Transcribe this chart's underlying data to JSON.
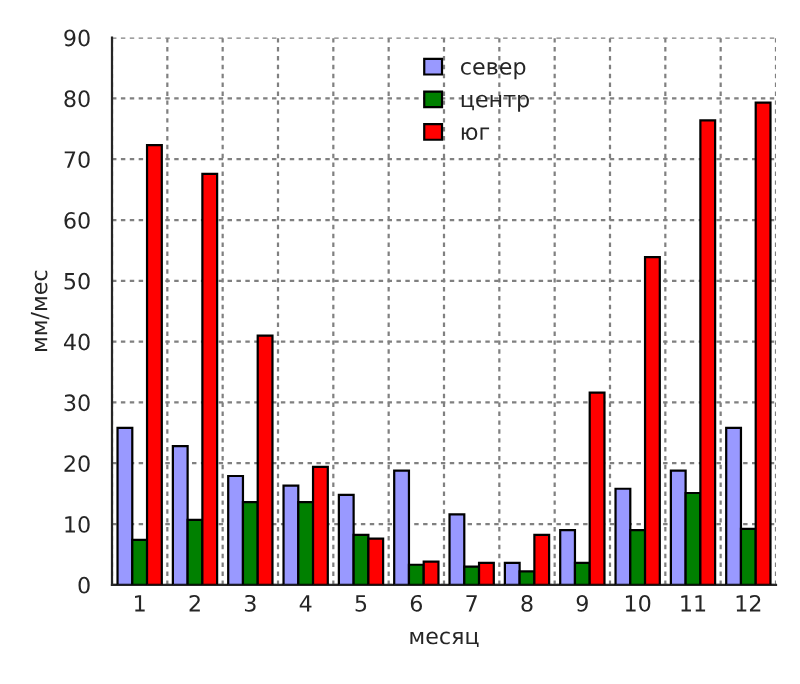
{
  "chart_data": {
    "type": "bar",
    "xlabel": "месяц",
    "ylabel": "мм/мес",
    "categories": [
      "1",
      "2",
      "3",
      "4",
      "5",
      "6",
      "7",
      "8",
      "9",
      "10",
      "11",
      "12"
    ],
    "series": [
      {
        "name": "север",
        "color": "#9999ff",
        "values": [
          25.8,
          22.8,
          17.9,
          16.3,
          14.8,
          18.8,
          11.6,
          3.6,
          9.0,
          15.8,
          18.8,
          25.8
        ]
      },
      {
        "name": "центр",
        "color": "#008000",
        "values": [
          7.4,
          10.7,
          13.6,
          13.6,
          8.2,
          3.3,
          3.0,
          2.2,
          3.6,
          9.0,
          15.1,
          9.2
        ]
      },
      {
        "name": "юг",
        "color": "#ff0000",
        "values": [
          72.3,
          67.6,
          41.0,
          19.4,
          7.6,
          3.8,
          3.6,
          8.2,
          31.6,
          53.9,
          76.4,
          79.3
        ]
      }
    ],
    "ylim": [
      0,
      90
    ],
    "yticks": [
      0,
      10,
      20,
      30,
      40,
      50,
      60,
      70,
      80,
      90
    ],
    "grid": true,
    "legend": "top"
  }
}
